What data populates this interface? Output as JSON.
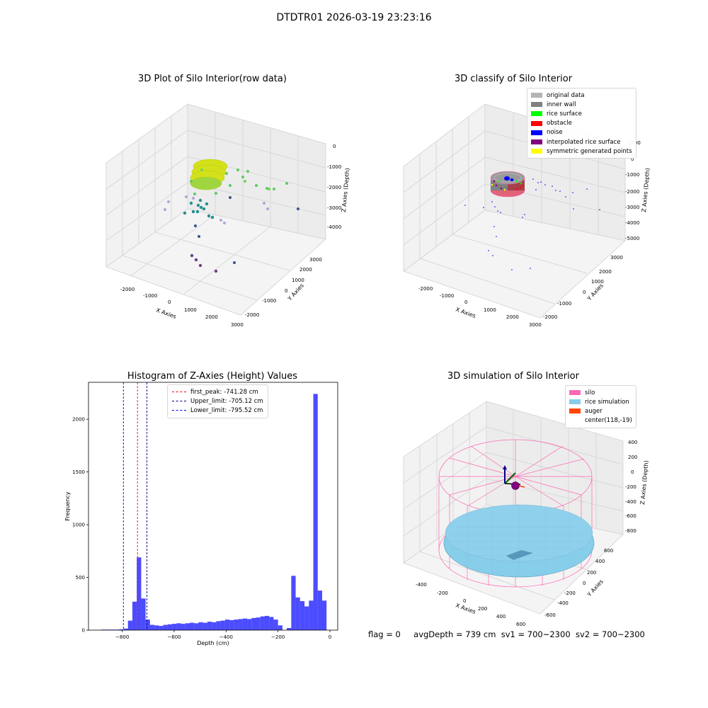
{
  "suptitle": "DTDTR01 2026-03-19 23:23:16",
  "panels": {
    "raw": {
      "title": "3D Plot of Silo Interior(row data)",
      "xlabel": "X Axies",
      "ylabel": "Y Axies",
      "zlabel": "Z Axies (Depth)",
      "xticks": [
        "-2000",
        "-1000",
        "0",
        "1000",
        "2000",
        "3000"
      ],
      "yticks": [
        "-2000",
        "-1000",
        "0",
        "1000",
        "2000",
        "3000"
      ],
      "zticks": [
        "0",
        "-1000",
        "-2000",
        "-3000",
        "-4000"
      ]
    },
    "classify": {
      "title": "3D classify of Silo Interior",
      "xlabel": "X Axies",
      "ylabel": "Y Axies",
      "zlabel": "Z Axies (Depth)",
      "xticks": [
        "-2000",
        "-1000",
        "0",
        "1000",
        "2000",
        "3000"
      ],
      "yticks": [
        "-2000",
        "-1000",
        "0",
        "1000",
        "2000",
        "3000"
      ],
      "zticks": [
        "1000",
        "0",
        "-1000",
        "-2000",
        "-3000",
        "-4000",
        "-5000"
      ],
      "legend": [
        {
          "label": "original data",
          "color": "#b4b4b4"
        },
        {
          "label": "inner wall",
          "color": "#808080"
        },
        {
          "label": "rice surface",
          "color": "#00ff00"
        },
        {
          "label": "obstacle",
          "color": "#ff0000"
        },
        {
          "label": "noise",
          "color": "#0000ff"
        },
        {
          "label": "interpolated rice surface",
          "color": "#800080"
        },
        {
          "label": "symmetric generated points",
          "color": "#ffff00"
        }
      ]
    },
    "simulation": {
      "title": "3D simulation of Silo Interior",
      "xlabel": "X Axies",
      "ylabel": "Y Axies",
      "zlabel": "Z Axies (Depth)",
      "xticks": [
        "-400",
        "-200",
        "0",
        "200",
        "400",
        "600"
      ],
      "yticks": [
        "-600",
        "-400",
        "-200",
        "0",
        "200",
        "400",
        "600"
      ],
      "zticks": [
        "400",
        "200",
        "0",
        "-200",
        "-400",
        "-600",
        "-800"
      ],
      "legend": [
        {
          "label": "silo",
          "color": "#ff69b4"
        },
        {
          "label": "rice simulation",
          "color": "#87ceeb"
        },
        {
          "label": "auger",
          "color": "#ff4500"
        },
        {
          "label": "center(118,-19)",
          "color": ""
        }
      ]
    }
  },
  "chart_data": {
    "type": "bar",
    "title": "Histogram of Z-Axies (Height) Values",
    "xlabel": "Depth (cm)",
    "ylabel": "Frequency",
    "xlim": [
      -930,
      30
    ],
    "ylim": [
      0,
      2350
    ],
    "xticks": [
      -800,
      -600,
      -400,
      -200,
      0
    ],
    "yticks": [
      0,
      500,
      1000,
      1500,
      2000
    ],
    "bin_width": 17,
    "bins": [
      {
        "x": -880,
        "y": 5
      },
      {
        "x": -863,
        "y": 5
      },
      {
        "x": -846,
        "y": 5
      },
      {
        "x": -829,
        "y": 5
      },
      {
        "x": -812,
        "y": 8
      },
      {
        "x": -795,
        "y": 15
      },
      {
        "x": -778,
        "y": 90
      },
      {
        "x": -761,
        "y": 270
      },
      {
        "x": -744,
        "y": 690
      },
      {
        "x": -727,
        "y": 300
      },
      {
        "x": -710,
        "y": 100
      },
      {
        "x": -693,
        "y": 50
      },
      {
        "x": -676,
        "y": 45
      },
      {
        "x": -659,
        "y": 40
      },
      {
        "x": -642,
        "y": 50
      },
      {
        "x": -625,
        "y": 55
      },
      {
        "x": -608,
        "y": 60
      },
      {
        "x": -591,
        "y": 65
      },
      {
        "x": -574,
        "y": 60
      },
      {
        "x": -557,
        "y": 65
      },
      {
        "x": -540,
        "y": 70
      },
      {
        "x": -523,
        "y": 65
      },
      {
        "x": -506,
        "y": 75
      },
      {
        "x": -489,
        "y": 70
      },
      {
        "x": -472,
        "y": 80
      },
      {
        "x": -455,
        "y": 75
      },
      {
        "x": -438,
        "y": 85
      },
      {
        "x": -421,
        "y": 90
      },
      {
        "x": -404,
        "y": 100
      },
      {
        "x": -387,
        "y": 95
      },
      {
        "x": -370,
        "y": 100
      },
      {
        "x": -353,
        "y": 105
      },
      {
        "x": -336,
        "y": 110
      },
      {
        "x": -319,
        "y": 105
      },
      {
        "x": -302,
        "y": 115
      },
      {
        "x": -285,
        "y": 120
      },
      {
        "x": -268,
        "y": 130
      },
      {
        "x": -251,
        "y": 135
      },
      {
        "x": -234,
        "y": 125
      },
      {
        "x": -217,
        "y": 100
      },
      {
        "x": -200,
        "y": 45
      },
      {
        "x": -183,
        "y": 0
      },
      {
        "x": -166,
        "y": 20
      },
      {
        "x": -149,
        "y": 515
      },
      {
        "x": -132,
        "y": 310
      },
      {
        "x": -115,
        "y": 275
      },
      {
        "x": -98,
        "y": 225
      },
      {
        "x": -81,
        "y": 280
      },
      {
        "x": -64,
        "y": 2240
      },
      {
        "x": -47,
        "y": 375
      },
      {
        "x": -30,
        "y": 280
      }
    ],
    "lines": [
      {
        "label": "first_peak: -741.28 cm",
        "value": -741.28,
        "color": "#ff0000"
      },
      {
        "label": "Upper_limit: -705.12 cm",
        "value": -705.12,
        "color": "#00008b"
      },
      {
        "label": "Lower_limit: -795.52 cm",
        "value": -795.52,
        "color": "#0000ff"
      }
    ]
  },
  "status": {
    "flag": "flag = 0",
    "avg": "avgDepth = 739 cm",
    "sv1": "sv1 = 700~2300",
    "sv2": "sv2 = 700~2300"
  }
}
